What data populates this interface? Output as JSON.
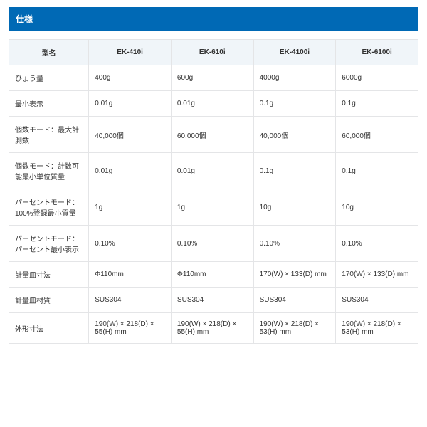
{
  "section_title": "仕様",
  "columns": [
    "型名",
    "EK-410i",
    "EK-610i",
    "EK-4100i",
    "EK-6100i"
  ],
  "rows": [
    {
      "label": "ひょう量",
      "cells": [
        "400g",
        "600g",
        "4000g",
        "6000g"
      ]
    },
    {
      "label": "最小表示",
      "cells": [
        "0.01g",
        "0.01g",
        "0.1g",
        "0.1g"
      ]
    },
    {
      "label": "個数モード：最大計測数",
      "cells": [
        "40,000個",
        "60,000個",
        "40,000個",
        "60,000個"
      ]
    },
    {
      "label": "個数モード：計数可能最小単位質量",
      "cells": [
        "0.01g",
        "0.01g",
        "0.1g",
        "0.1g"
      ]
    },
    {
      "label": "パーセントモード：100%登録最小質量",
      "cells": [
        "1g",
        "1g",
        "10g",
        "10g"
      ]
    },
    {
      "label": "パーセントモード：パーセント最小表示",
      "cells": [
        "0.10%",
        "0.10%",
        "0.10%",
        "0.10%"
      ]
    },
    {
      "label": "計量皿寸法",
      "cells": [
        "Φ110mm",
        "Φ110mm",
        "170(W) × 133(D) mm",
        "170(W) × 133(D) mm"
      ]
    },
    {
      "label": "計量皿材質",
      "cells": [
        "SUS304",
        "SUS304",
        "SUS304",
        "SUS304"
      ]
    },
    {
      "label": "外形寸法",
      "cells": [
        "190(W) × 218(D) × 55(H) mm",
        "190(W) × 218(D) × 55(H) mm",
        "190(W) × 218(D) × 53(H) mm",
        "190(W) × 218(D) × 53(H) mm"
      ]
    }
  ]
}
